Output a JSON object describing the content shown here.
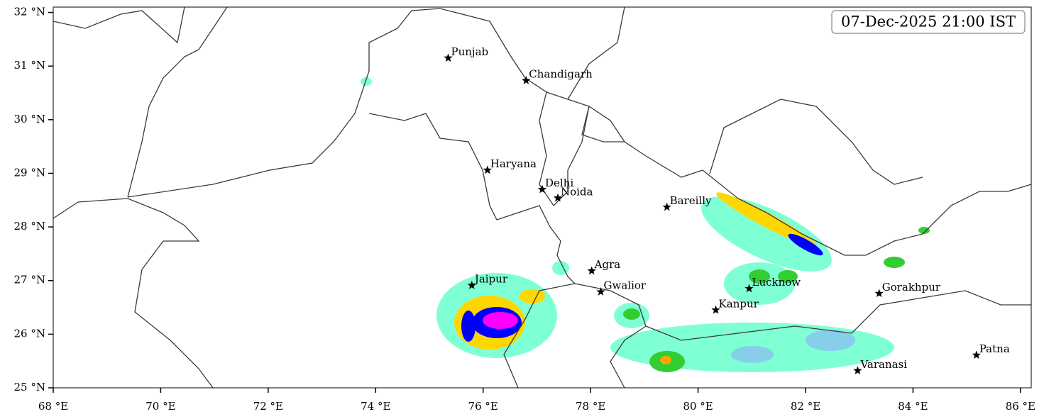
{
  "map": {
    "title": "07-Dec-2025 21:00 IST",
    "xlim": [
      68,
      86.2
    ],
    "ylim": [
      25,
      32.1
    ],
    "xticks": [
      {
        "value": 68,
        "label": "68 °E"
      },
      {
        "value": 70,
        "label": "70 °E"
      },
      {
        "value": 72,
        "label": "72 °E"
      },
      {
        "value": 74,
        "label": "74 °E"
      },
      {
        "value": 76,
        "label": "76 °E"
      },
      {
        "value": 78,
        "label": "78 °E"
      },
      {
        "value": 80,
        "label": "80 °E"
      },
      {
        "value": 82,
        "label": "82 °E"
      },
      {
        "value": 84,
        "label": "84 °E"
      },
      {
        "value": 86,
        "label": "86 °E"
      }
    ],
    "yticks": [
      {
        "value": 25,
        "label": "25 °N"
      },
      {
        "value": 26,
        "label": "26 °N"
      },
      {
        "value": 27,
        "label": "27 °N"
      },
      {
        "value": 28,
        "label": "28 °N"
      },
      {
        "value": 29,
        "label": "29 °N"
      },
      {
        "value": 30,
        "label": "30 °N"
      },
      {
        "value": 31,
        "label": "31 °N"
      },
      {
        "value": 32,
        "label": "32 °N"
      }
    ],
    "places": [
      {
        "name": "Punjab",
        "lon": 75.35,
        "lat": 31.15
      },
      {
        "name": "Chandigarh",
        "lon": 76.8,
        "lat": 30.73
      },
      {
        "name": "Haryana",
        "lon": 76.08,
        "lat": 29.06
      },
      {
        "name": "Delhi",
        "lon": 77.1,
        "lat": 28.7
      },
      {
        "name": "Noida",
        "lon": 77.39,
        "lat": 28.54
      },
      {
        "name": "Bareilly",
        "lon": 79.42,
        "lat": 28.37
      },
      {
        "name": "Agra",
        "lon": 78.02,
        "lat": 27.18
      },
      {
        "name": "Jaipur",
        "lon": 75.79,
        "lat": 26.91
      },
      {
        "name": "Gwalior",
        "lon": 78.19,
        "lat": 26.79
      },
      {
        "name": "Lucknow",
        "lon": 80.95,
        "lat": 26.85
      },
      {
        "name": "Kanpur",
        "lon": 80.33,
        "lat": 26.45
      },
      {
        "name": "Gorakhpur",
        "lon": 83.37,
        "lat": 26.76
      },
      {
        "name": "Varanasi",
        "lon": 82.97,
        "lat": 25.32
      },
      {
        "name": "Patna",
        "lon": 85.18,
        "lat": 25.61
      }
    ]
  }
}
